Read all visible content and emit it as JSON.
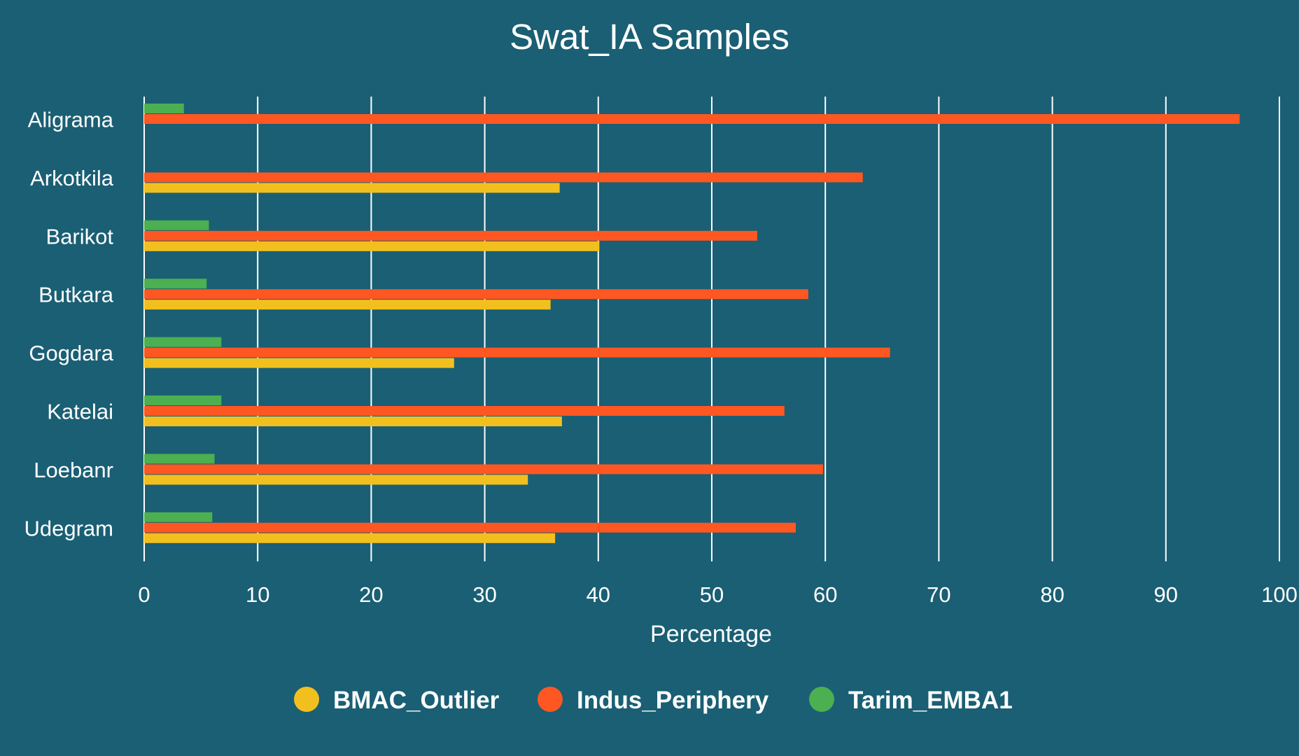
{
  "chart_data": {
    "type": "bar",
    "orientation": "horizontal",
    "title": "Swat_IA Samples",
    "xlabel": "Percentage",
    "ylabel": "",
    "xlim": [
      0,
      100
    ],
    "xticks": [
      0,
      10,
      20,
      30,
      40,
      50,
      60,
      70,
      80,
      90,
      100
    ],
    "grid": true,
    "legend_position": "bottom",
    "categories": [
      "Aligrama",
      "Arkotkila",
      "Barikot",
      "Butkara",
      "Gogdara",
      "Katelai",
      "Loebanr",
      "Udegram"
    ],
    "series": [
      {
        "name": "BMAC_Outlier",
        "color": "#f2c01e",
        "values": [
          0,
          36.6,
          40.1,
          35.8,
          27.3,
          36.8,
          33.8,
          36.2
        ]
      },
      {
        "name": "Indus_Periphery",
        "color": "#fe5722",
        "values": [
          96.5,
          63.3,
          54.0,
          58.5,
          65.7,
          56.4,
          59.8,
          57.4
        ]
      },
      {
        "name": "Tarim_EMBA1",
        "color": "#4caf50",
        "values": [
          3.5,
          0,
          5.7,
          5.5,
          6.8,
          6.8,
          6.2,
          6.0
        ]
      }
    ]
  },
  "colors": {
    "background": "#1a5f74",
    "grid": "#ffffff",
    "text": "#ffffff"
  }
}
